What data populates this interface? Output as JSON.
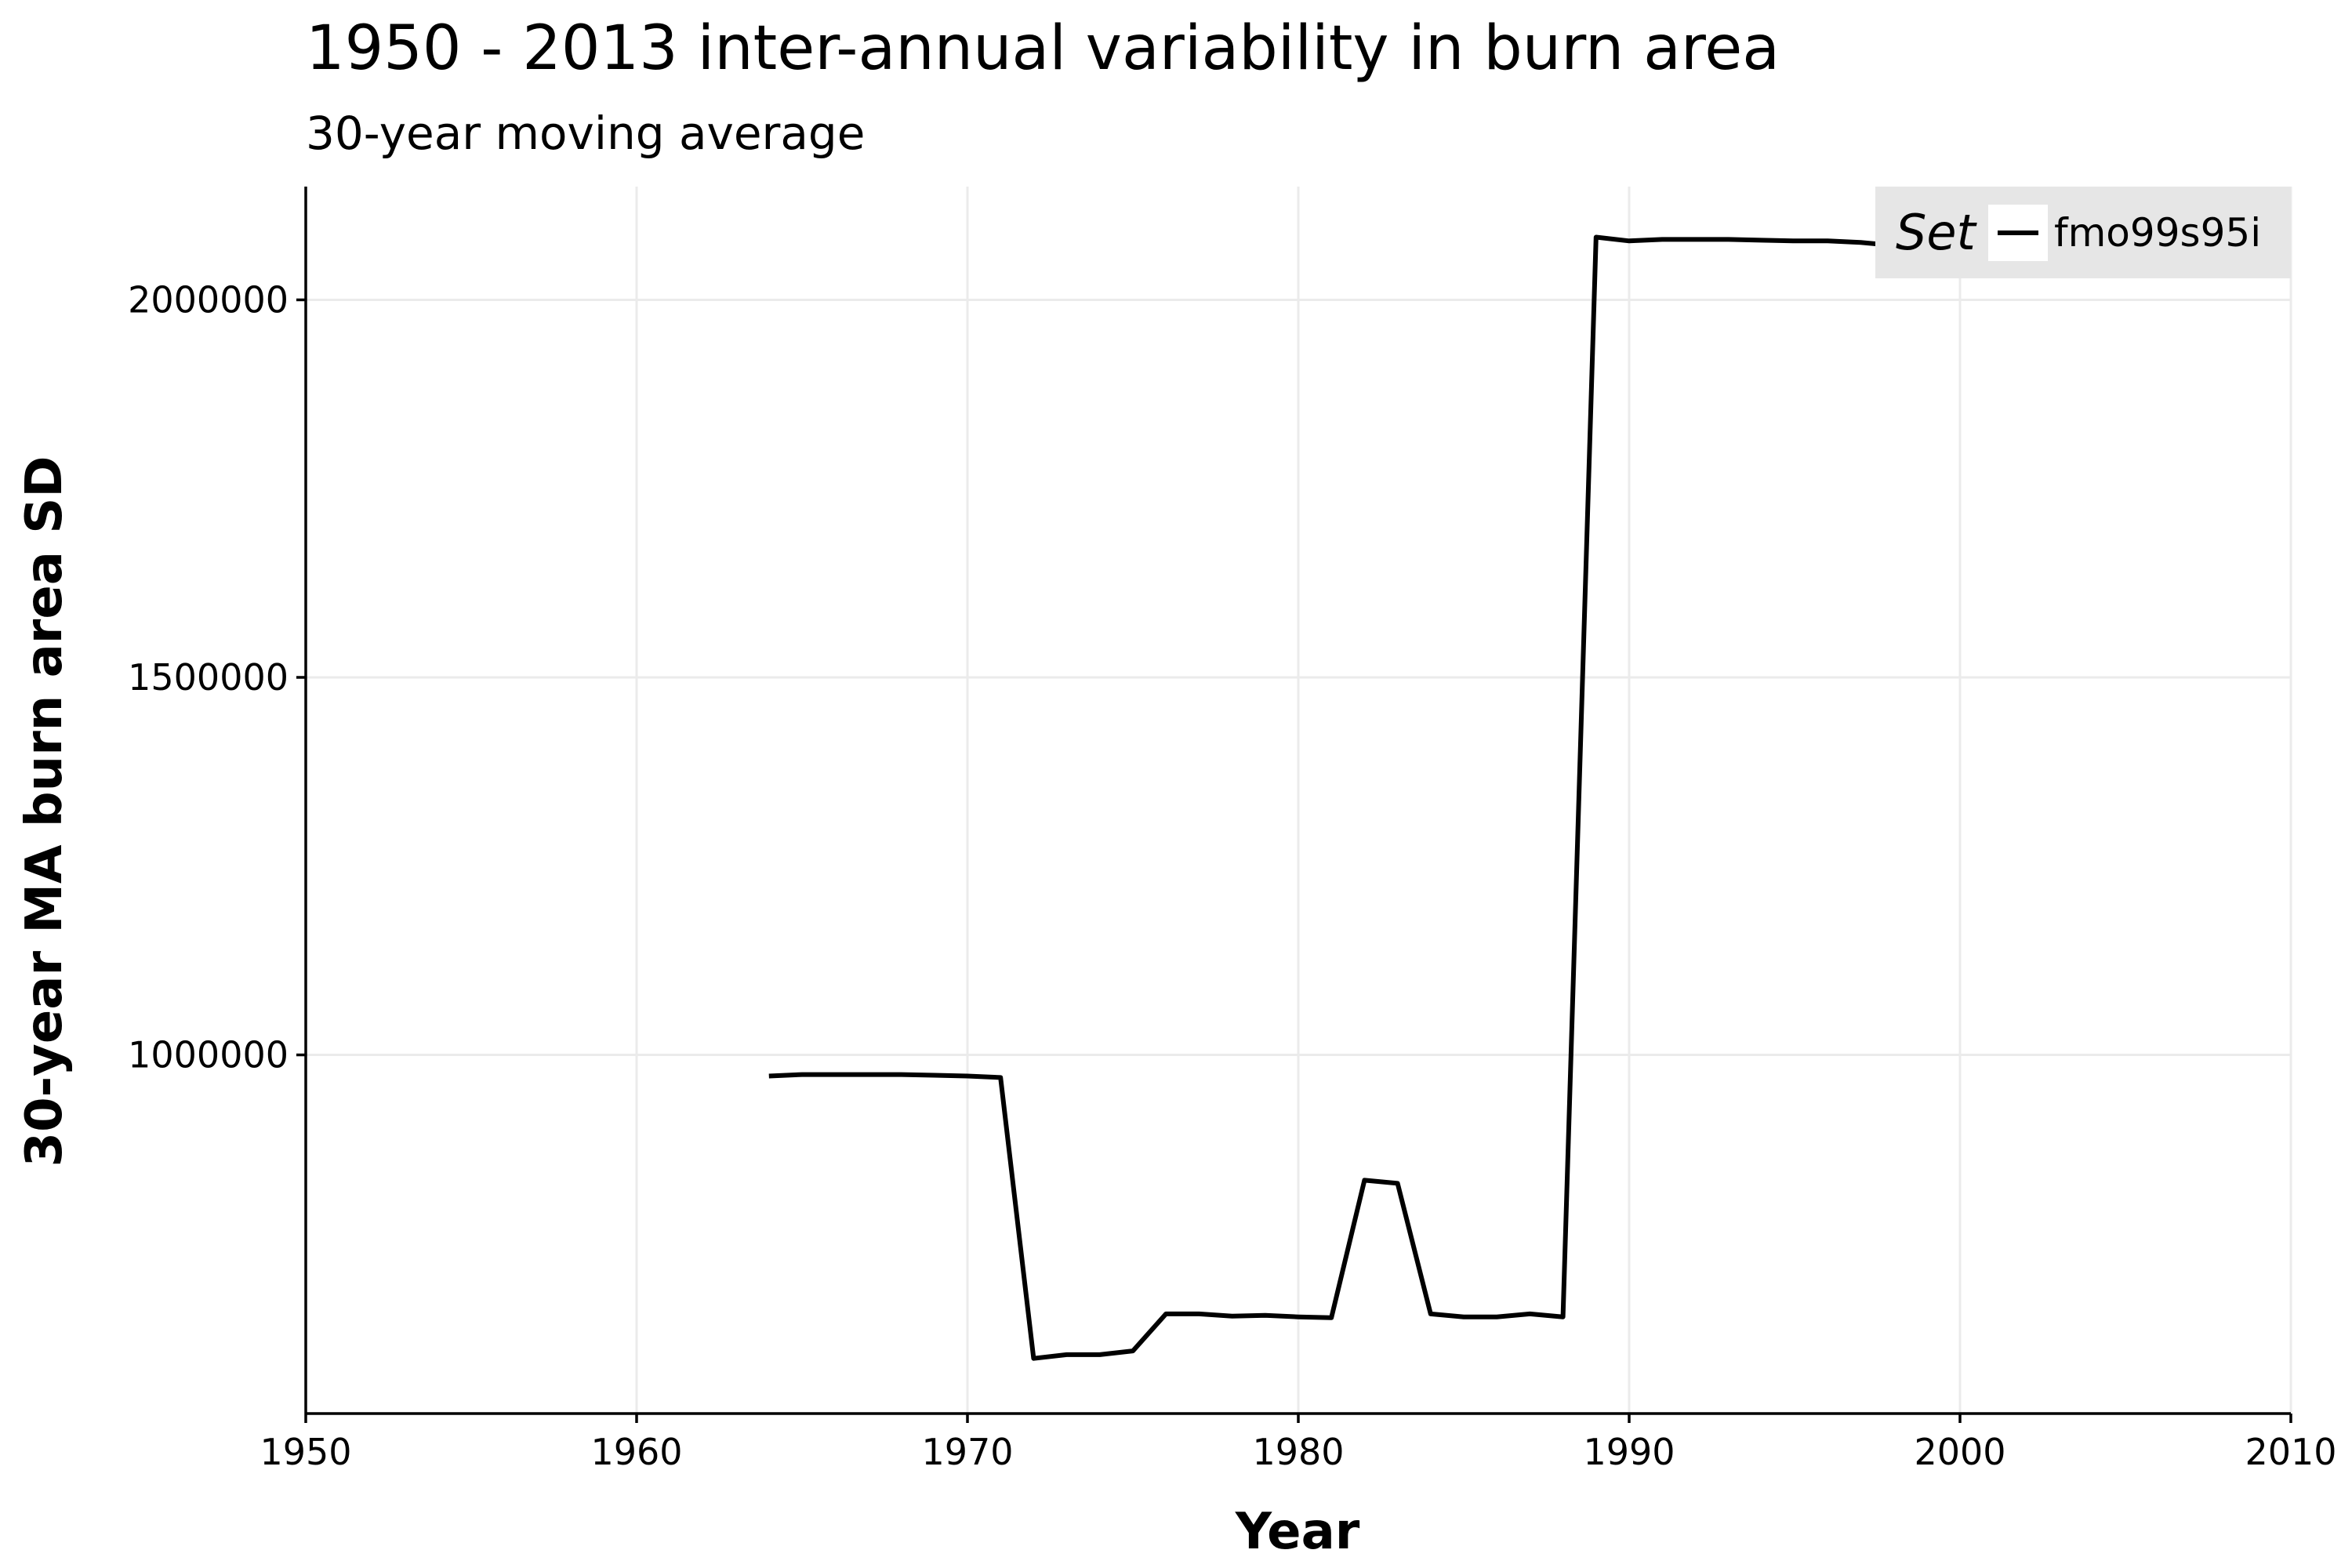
{
  "chart_data": {
    "type": "line",
    "title": "1950 - 2013 inter-annual variability in burn area",
    "subtitle": "30-year moving average",
    "xlabel": "Year",
    "ylabel": "30-year MA burn area SD",
    "xlim": [
      1950,
      2010
    ],
    "ylim": [
      525000,
      2150000
    ],
    "x_ticks": [
      1950,
      1960,
      1970,
      1980,
      1990,
      2000,
      2010
    ],
    "y_ticks": [
      1000000,
      1500000,
      2000000
    ],
    "grid": true,
    "legend": {
      "title": "Set",
      "position": "top-right"
    },
    "series": [
      {
        "name": "fmo99s95i",
        "color": "#000000",
        "x": [
          1964,
          1965,
          1966,
          1967,
          1968,
          1969,
          1970,
          1971,
          1972,
          1973,
          1974,
          1975,
          1976,
          1977,
          1978,
          1979,
          1980,
          1981,
          1982,
          1983,
          1984,
          1985,
          1986,
          1987,
          1988,
          1989,
          1990,
          1991,
          1992,
          1993,
          1994,
          1995,
          1996,
          1997,
          1998
        ],
        "y": [
          972000,
          974000,
          974000,
          974000,
          974000,
          973000,
          972000,
          970000,
          598000,
          603000,
          603000,
          608000,
          657000,
          657000,
          654000,
          655000,
          653000,
          652000,
          834000,
          830000,
          657000,
          653000,
          653000,
          657000,
          653000,
          2083000,
          2078000,
          2080000,
          2080000,
          2080000,
          2079000,
          2078000,
          2078000,
          2076000,
          2072000
        ]
      }
    ]
  }
}
